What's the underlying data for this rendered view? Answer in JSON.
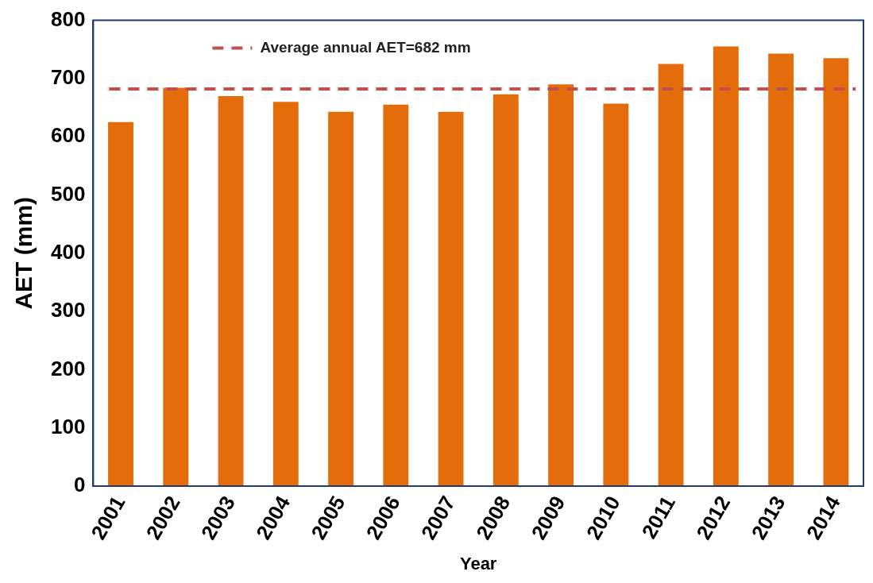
{
  "chart_data": {
    "type": "bar",
    "xlabel": "Year",
    "ylabel": "AET (mm)",
    "categories": [
      "2001",
      "2002",
      "2003",
      "2004",
      "2005",
      "2006",
      "2007",
      "2008",
      "2009",
      "2010",
      "2011",
      "2012",
      "2013",
      "2014"
    ],
    "values": [
      625,
      684,
      670,
      660,
      643,
      655,
      643,
      673,
      690,
      657,
      725,
      755,
      743,
      735
    ],
    "color": "#e46c0a",
    "ylim": [
      0,
      800
    ],
    "yticks": [
      0,
      100,
      200,
      300,
      400,
      500,
      600,
      700,
      800
    ],
    "grid": false,
    "ref_lines": [
      {
        "axis": "y",
        "value": 682,
        "label": "Average annual AET=682 mm",
        "color": "#c0504d",
        "line_style": "dashed"
      }
    ]
  }
}
